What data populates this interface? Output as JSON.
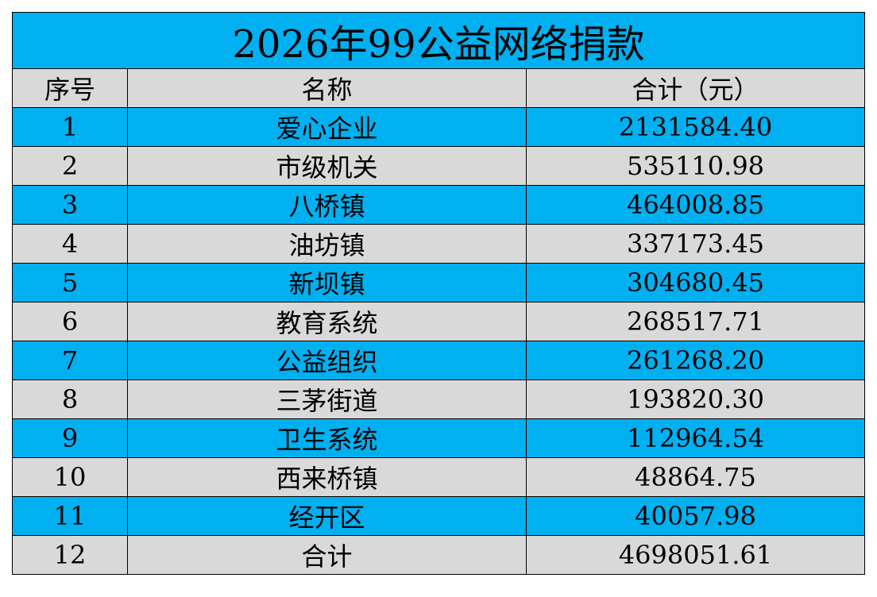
{
  "title": "2026年99公益网络捐款",
  "table": {
    "header": [
      "序号",
      "名称",
      "合计（元）"
    ],
    "rows": [
      [
        "1",
        "爱心企业",
        "2131584.40"
      ],
      [
        "2",
        "市级机关",
        "535110.98"
      ],
      [
        "3",
        "八桥镇",
        "464008.85"
      ],
      [
        "4",
        "油坊镇",
        "337173.45"
      ],
      [
        "5",
        "新坝镇",
        "304680.45"
      ],
      [
        "6",
        "教育系统",
        "268517.71"
      ],
      [
        "7",
        "公益组织",
        "261268.20"
      ],
      [
        "8",
        "三茅街道",
        "193820.30"
      ],
      [
        "9",
        "卫生系统",
        "112964.54"
      ],
      [
        "10",
        "西来桥镇",
        "48864.75"
      ],
      [
        "11",
        "经开区",
        "40057.98"
      ],
      [
        "12",
        "合计",
        "4698051.61"
      ]
    ]
  }
}
